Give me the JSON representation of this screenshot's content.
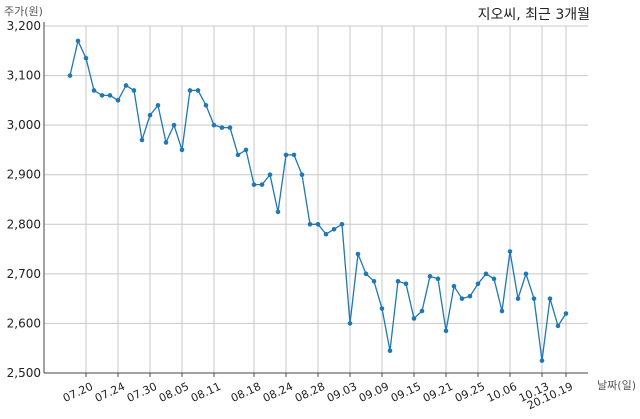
{
  "chart_data": {
    "type": "line",
    "title": "지오씨, 최근 3개월",
    "xlabel": "날짜(일)",
    "ylabel": "주가(원)",
    "ylim": [
      2500,
      3200
    ],
    "yticks": [
      2500,
      2600,
      2700,
      2800,
      2900,
      3000,
      3100,
      3200
    ],
    "ytick_labels": [
      "2,500",
      "2,600",
      "2,700",
      "2,800",
      "2,900",
      "3,000",
      "3,100",
      "3,200"
    ],
    "xtick_labels": [
      "07.20",
      "07.24",
      "07.30",
      "08.05",
      "08.11",
      "08.18",
      "08.24",
      "08.28",
      "09.03",
      "09.09",
      "09.15",
      "09.21",
      "09.25",
      "10.06",
      "10.13",
      "20.10.19"
    ],
    "xtick_index": [
      2,
      6,
      10,
      14,
      18,
      23,
      27,
      31,
      35,
      39,
      43,
      47,
      51,
      55,
      59,
      62
    ],
    "grid": true,
    "line_color": "#1f77b4",
    "values": [
      3100,
      3170,
      3135,
      3070,
      3060,
      3060,
      3050,
      3080,
      3070,
      2970,
      3020,
      3040,
      2965,
      3000,
      2950,
      3070,
      3070,
      3040,
      3000,
      2995,
      2995,
      2940,
      2950,
      2880,
      2880,
      2900,
      2825,
      2940,
      2940,
      2900,
      2800,
      2800,
      2780,
      2790,
      2800,
      2600,
      2740,
      2700,
      2685,
      2630,
      2545,
      2685,
      2680,
      2610,
      2625,
      2695,
      2690,
      2585,
      2675,
      2650,
      2655,
      2680,
      2700,
      2690,
      2625,
      2745,
      2650,
      2700,
      2650,
      2525,
      2650,
      2595,
      2620
    ]
  }
}
